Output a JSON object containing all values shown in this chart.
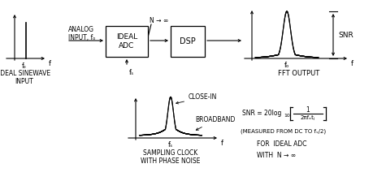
{
  "background_color": "#ffffff",
  "fig_width": 4.59,
  "fig_height": 2.23,
  "dpi": 100,
  "texts": {
    "ideal_sinewave_input": "IDEAL SINEWAVE\nINPUT",
    "analog_input": "ANALOG\nINPUT, fₒ",
    "n_inf_top": "N → ∞",
    "ideal_adc": "IDEAL\nADC",
    "dsp": "DSP",
    "fs_below_adc": "fₛ",
    "fs_below_clock": "fₛ",
    "close_in": "CLOSE-IN",
    "broadband": "BROADBAND",
    "sampling_clock": "SAMPLING CLOCK\nWITH PHASE NOISE",
    "snr_label": "SNR",
    "f_label_sine": "f",
    "f_label_fft": "f",
    "f_label_clock": "f",
    "fo_sine": "fₒ",
    "fo_fft": "fₒ",
    "fft_output": "FFT OUTPUT",
    "snr_formula": "SNR = 20log",
    "log_base": "10",
    "fraction_num": "1",
    "fraction_den": "2πfₒtⱼ",
    "measured": "(MEASURED FROM DC TO fₛ/2)",
    "for_ideal": "FOR  IDEAL ADC",
    "with_n": "WITH  N → ∞"
  },
  "colors": {
    "black": "#000000",
    "white": "#ffffff"
  }
}
